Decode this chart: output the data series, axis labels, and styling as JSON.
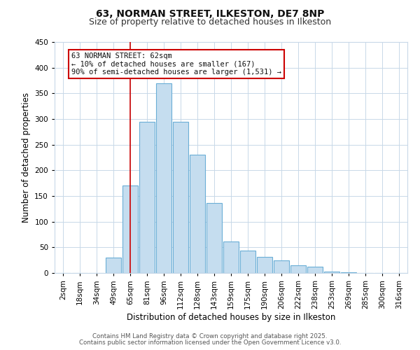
{
  "title": "63, NORMAN STREET, ILKESTON, DE7 8NP",
  "subtitle": "Size of property relative to detached houses in Ilkeston",
  "xlabel": "Distribution of detached houses by size in Ilkeston",
  "ylabel": "Number of detached properties",
  "bar_labels": [
    "2sqm",
    "18sqm",
    "34sqm",
    "49sqm",
    "65sqm",
    "81sqm",
    "96sqm",
    "112sqm",
    "128sqm",
    "143sqm",
    "159sqm",
    "175sqm",
    "190sqm",
    "206sqm",
    "222sqm",
    "238sqm",
    "253sqm",
    "269sqm",
    "285sqm",
    "300sqm",
    "316sqm"
  ],
  "bar_values": [
    0,
    0,
    0,
    30,
    170,
    295,
    370,
    295,
    230,
    137,
    62,
    44,
    31,
    24,
    15,
    12,
    3,
    1,
    0,
    0,
    0
  ],
  "bar_color": "#c5ddef",
  "bar_edge_color": "#6aaed6",
  "ylim": [
    0,
    450
  ],
  "yticks": [
    0,
    50,
    100,
    150,
    200,
    250,
    300,
    350,
    400,
    450
  ],
  "vline_x_index": 4,
  "vline_color": "#cc0000",
  "annotation_title": "63 NORMAN STREET: 62sqm",
  "annotation_line1": "← 10% of detached houses are smaller (167)",
  "annotation_line2": "90% of semi-detached houses are larger (1,531) →",
  "annotation_box_color": "#cc0000",
  "footer1": "Contains HM Land Registry data © Crown copyright and database right 2025.",
  "footer2": "Contains public sector information licensed under the Open Government Licence v3.0.",
  "bg_color": "#ffffff",
  "grid_color": "#c8d8e8"
}
